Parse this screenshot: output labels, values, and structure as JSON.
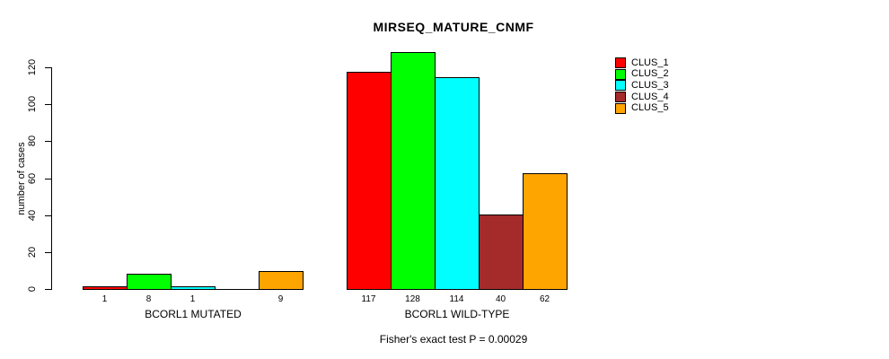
{
  "title": "MIRSEQ_MATURE_CNMF",
  "annotation": "Fisher's exact test P = 0.00029",
  "y_axis": {
    "label": "number of cases",
    "ticks": [
      0,
      20,
      40,
      60,
      80,
      100,
      120
    ]
  },
  "legend": {
    "position": "top-right",
    "entries": [
      {
        "label": "CLUS_1",
        "color": "#FF0000"
      },
      {
        "label": "CLUS_2",
        "color": "#00FF00"
      },
      {
        "label": "CLUS_3",
        "color": "#00FFFF"
      },
      {
        "label": "CLUS_4",
        "color": "#A52A2A"
      },
      {
        "label": "CLUS_5",
        "color": "#FFA500"
      }
    ]
  },
  "chart_data": {
    "type": "bar",
    "title": "MIRSEQ_MATURE_CNMF",
    "xlabel": "",
    "ylabel": "number of cases",
    "ylim": [
      0,
      120
    ],
    "grid": false,
    "legend_position": "top-right",
    "series_names": [
      "CLUS_1",
      "CLUS_2",
      "CLUS_3",
      "CLUS_4",
      "CLUS_5"
    ],
    "series_colors": [
      "#FF0000",
      "#00FF00",
      "#00FFFF",
      "#A52A2A",
      "#FFA500"
    ],
    "groups": [
      {
        "label": "BCORL1 MUTATED",
        "values": [
          1,
          8,
          1,
          0,
          9
        ]
      },
      {
        "label": "BCORL1 WILD-TYPE",
        "values": [
          117,
          128,
          114,
          40,
          62
        ]
      }
    ],
    "bar_value_labels_shown": true,
    "annotation": "Fisher's exact test P = 0.00029"
  }
}
